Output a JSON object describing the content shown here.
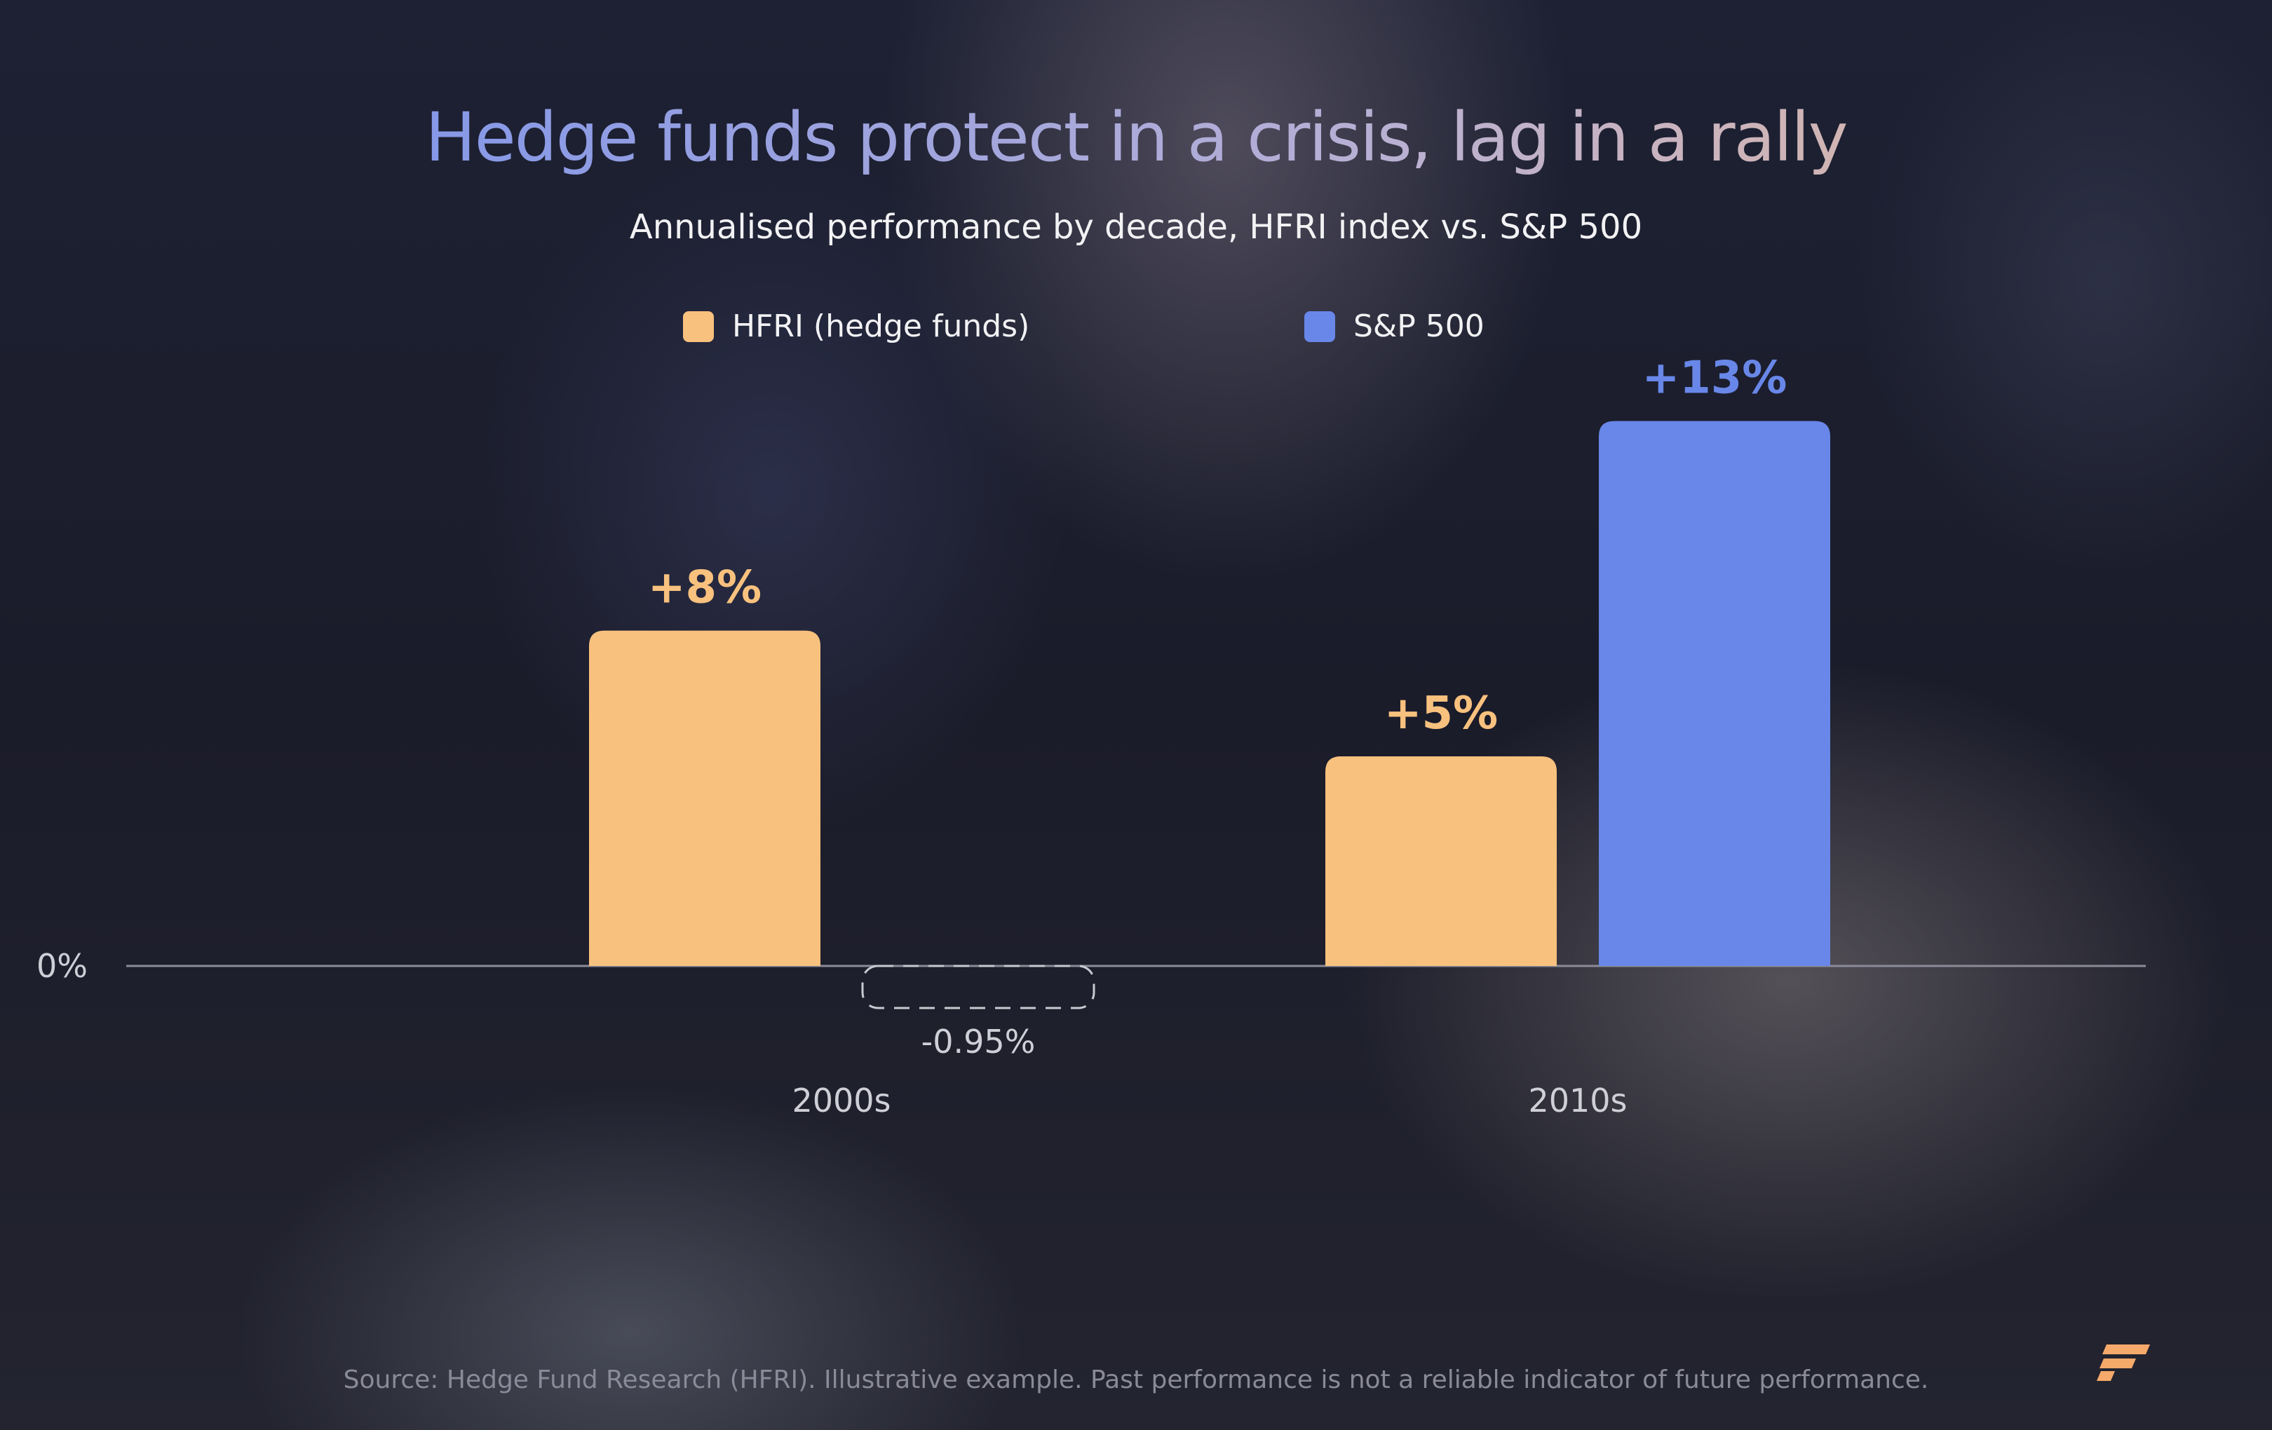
{
  "chart_data": {
    "type": "bar",
    "title": "Hedge funds protect in a crisis, lag in a rally",
    "subtitle": "Annualised performance by decade, HFRI index vs. S&P 500",
    "categories": [
      "2000s",
      "2010s"
    ],
    "series": [
      {
        "name": "HFRI (hedge funds)",
        "color": "#f8c17e",
        "values": [
          8,
          5
        ],
        "labels": [
          "+8%",
          "+5%"
        ]
      },
      {
        "name": "S&P 500",
        "color": "#6887e8",
        "values": [
          -0.95,
          13
        ],
        "labels": [
          "-0.95%",
          "+13%"
        ]
      }
    ],
    "ylim": [
      -1.1,
      13
    ],
    "baseline_label": "0%",
    "legend_position": "top-center",
    "grid": false,
    "unit": "%"
  },
  "source": "Source: Hedge Fund Research (HFRI). Illustrative example. Past performance is not a reliable indicator of future performance.",
  "colors": {
    "hfri": "#f8c17e",
    "sp500": "#6887e8",
    "negative_outline": "#c9c9d2",
    "axis": "#8b8b98",
    "logo": "#f5a96a"
  },
  "icons": {
    "logo": "brand-logo-icon"
  }
}
